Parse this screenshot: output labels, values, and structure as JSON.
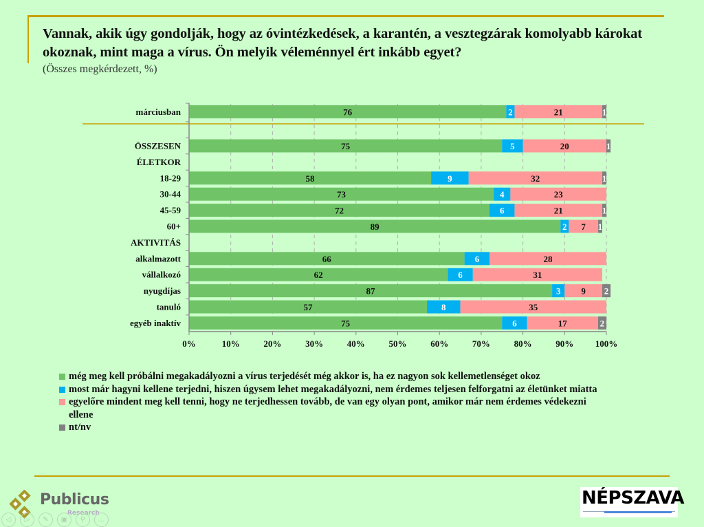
{
  "header": {
    "title": "Vannak, akik úgy gondolják, hogy az óvintézkedések, a karantén, a vesztegzárak komolyabb károkat okoznak, mint maga a vírus. Ön melyik véleménnyel ért inkább egyet?",
    "subtitle": "(Összes megkérdezett, %)"
  },
  "colors": {
    "series": [
      "#70c467",
      "#00b0f0",
      "#ff9999",
      "#808080"
    ],
    "value_label": [
      "#111111",
      "#ffffff",
      "#111111",
      "#ffffff"
    ],
    "background": "#ccffcc",
    "accent_rule": "#c8a000"
  },
  "chart_data": {
    "type": "bar",
    "orientation": "horizontal",
    "stacked": "percent",
    "title": "Vannak, akik úgy gondolják, hogy az óvintézkedések, a karantén, a vesztegzárak komolyabb károkat okoznak, mint maga a vírus. Ön melyik véleménnyel ért inkább egyet?",
    "subtitle": "(Összes megkérdezett, %)",
    "xlabel": "",
    "ylabel": "",
    "xlim": [
      0,
      100
    ],
    "x_ticks": [
      "0%",
      "10%",
      "20%",
      "30%",
      "40%",
      "50%",
      "60%",
      "70%",
      "80%",
      "90%",
      "100%"
    ],
    "grid": "vertical dashed",
    "legend_position": "bottom",
    "categories": [
      "márciusban",
      "ÖSSZESEN",
      "ÉLETKOR",
      "18-29",
      "30-44",
      "45-59",
      "60+",
      "AKTIVITÁS",
      "alkalmazott",
      "vállalkozó",
      "nyugdíjas",
      "tanuló",
      "egyéb inaktív"
    ],
    "category_is_header": [
      false,
      false,
      true,
      false,
      false,
      false,
      false,
      true,
      false,
      false,
      false,
      false,
      false
    ],
    "series": [
      {
        "name": "még meg kell próbálni megakadályozni a vírus terjedését még akkor is, ha ez nagyon sok kellemetlenséget okoz",
        "values": [
          76,
          75,
          null,
          58,
          73,
          72,
          89,
          null,
          66,
          62,
          87,
          57,
          75
        ]
      },
      {
        "name": "most már hagyni kellene terjedni, hiszen úgysem lehet megakadályozni, nem érdemes teljesen felforgatni az életünket miatta",
        "values": [
          2,
          5,
          null,
          9,
          4,
          6,
          2,
          null,
          6,
          6,
          3,
          8,
          6
        ]
      },
      {
        "name": "egyelőre mindent meg kell tenni, hogy ne terjedhessen tovább, de van egy olyan pont, amikor már nem érdemes védekezni ellene",
        "values": [
          21,
          20,
          null,
          32,
          23,
          21,
          7,
          null,
          28,
          31,
          9,
          35,
          17
        ]
      },
      {
        "name": "nt/nv",
        "values": [
          1,
          1,
          null,
          1,
          0,
          1,
          1,
          null,
          0,
          0,
          2,
          0,
          2
        ]
      }
    ]
  },
  "legend": [
    {
      "label": "még meg kell próbálni megakadályozni a vírus terjedését még akkor is, ha ez nagyon sok kellemetlenséget okoz"
    },
    {
      "label": "most már hagyni kellene terjedni, hiszen úgysem lehet megakadályozni, nem érdemes teljesen felforgatni az életünket miatta"
    },
    {
      "label": "egyelőre mindent meg kell tenni, hogy ne terjedhessen tovább, de van egy olyan pont, amikor már nem érdemes védekezni ellene"
    },
    {
      "label": "nt/nv"
    }
  ],
  "footer": {
    "publicus_name": "Publicus",
    "publicus_sub": "Research",
    "nepszava_name": "NÉPSZAVA"
  },
  "controls": [
    {
      "icon": "previous-icon",
      "glyph": "◁"
    },
    {
      "icon": "next-icon",
      "glyph": "▷"
    },
    {
      "icon": "pen-icon",
      "glyph": "✎"
    },
    {
      "icon": "slides-icon",
      "glyph": "▣"
    },
    {
      "icon": "zoom-icon",
      "glyph": "⚲"
    },
    {
      "icon": "more-icon",
      "glyph": "…"
    }
  ]
}
